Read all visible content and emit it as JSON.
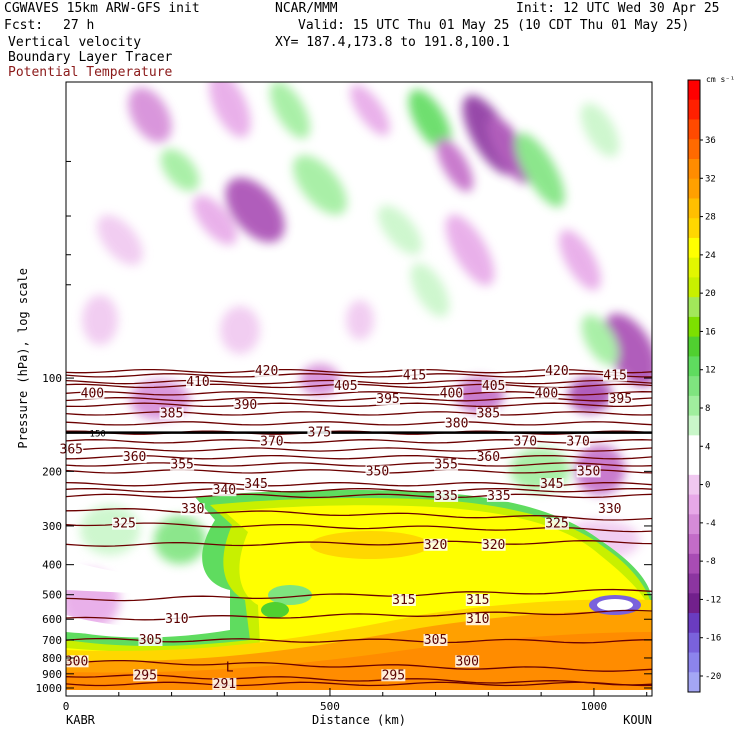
{
  "header": {
    "model": "CGWAVES 15km ARW-GFS init",
    "org": "NCAR/MMM",
    "init": "Init: 12 UTC Wed 30 Apr 25",
    "fcst_label": "Fcst:",
    "fcst_value": "27 h",
    "valid": "Valid: 15 UTC Thu 01 May 25 (10 CDT Thu 01 May 25)",
    "field1": "Vertical velocity",
    "xy": "XY= 187.4,173.8 to 191.8,100.1",
    "field2": "Boundary Layer Tracer",
    "field3": "Potential Temperature"
  },
  "colors": {
    "theta_line": "#6b0000",
    "field3_text": "#8b1a1a",
    "tracer": "#ff8c00"
  },
  "chart_data": {
    "type": "heatmap",
    "xlabel": "Distance (km)",
    "ylabel": "Pressure (hPa), log scale",
    "x_range": [
      0,
      1110
    ],
    "y_range": [
      1000,
      0
    ],
    "x_ticks": [
      0,
      500,
      1000
    ],
    "y_ticks": [
      100,
      200,
      300,
      400,
      500,
      600,
      700,
      800,
      900,
      1000
    ],
    "left_end_label": "KABR",
    "right_end_label": "KOUN",
    "colorbar": {
      "unit": "cm s⁻¹",
      "tick_labels": [
        "36",
        "32",
        "28",
        "24",
        "20",
        "16",
        "12",
        "8",
        "4",
        "0",
        "-4",
        "-8",
        "-12",
        "-16",
        "-20"
      ],
      "colors": [
        "#ff0000",
        "#ff2000",
        "#ff4a00",
        "#ff6a00",
        "#ff8c00",
        "#ffa000",
        "#ffbf00",
        "#ffd700",
        "#ffff00",
        "#e2f600",
        "#c8f000",
        "#a2e85a",
        "#7de000",
        "#50d030",
        "#5fdc5f",
        "#7fe47f",
        "#a0ee9e",
        "#c9f6c9",
        "#ffffff",
        "#ffffff",
        "#f0c8f0",
        "#e7a8e8",
        "#d58bd8",
        "#c36cc8",
        "#a84cb4",
        "#8c35a0",
        "#72208c",
        "#6a3cc0",
        "#7a62dc",
        "#8c84ec",
        "#a4a6f4"
      ]
    },
    "isentropes": [
      {
        "label": "291",
        "p": 970,
        "labels_at": [
          300
        ]
      },
      {
        "label": "295",
        "p": 910,
        "labels_at": [
          150,
          620
        ]
      },
      {
        "label": "300",
        "p": 820,
        "labels_at": [
          20,
          760
        ]
      },
      {
        "label": "305",
        "p": 700,
        "labels_at": [
          160,
          700
        ]
      },
      {
        "label": "310",
        "p": 600,
        "labels_at": [
          210,
          780
        ]
      },
      {
        "label": "315",
        "p": 520,
        "labels_at": [
          640,
          780
        ]
      },
      {
        "label": "320",
        "p": 345,
        "labels_at": [
          700,
          810
        ]
      },
      {
        "label": "325",
        "p": 295,
        "labels_at": [
          110,
          930
        ]
      },
      {
        "label": "330",
        "p": 265,
        "labels_at": [
          240,
          1030
        ]
      },
      {
        "label": "335",
        "p": 240,
        "labels_at": [
          720,
          820
        ]
      },
      {
        "label": "340",
        "p": 230,
        "labels_at": [
          300
        ]
      },
      {
        "label": "345",
        "p": 220,
        "labels_at": [
          360,
          920
        ]
      },
      {
        "label": "350",
        "p": 200,
        "labels_at": [
          590,
          990
        ]
      },
      {
        "label": "355",
        "p": 190,
        "labels_at": [
          220,
          720
        ]
      },
      {
        "label": "360",
        "p": 180,
        "labels_at": [
          130,
          800
        ]
      },
      {
        "label": "365",
        "p": 170,
        "labels_at": [
          10
        ]
      },
      {
        "label": "370",
        "p": 160,
        "labels_at": [
          390,
          870,
          970
        ]
      },
      {
        "label": "375",
        "p": 150,
        "labels_at": [
          480
        ]
      },
      {
        "label": "380",
        "p": 140,
        "labels_at": [
          740
        ]
      },
      {
        "label": "385",
        "p": 130,
        "labels_at": [
          200,
          800
        ]
      },
      {
        "label": "390",
        "p": 122,
        "labels_at": [
          340
        ]
      },
      {
        "label": "395",
        "p": 117,
        "labels_at": [
          610,
          1050
        ]
      },
      {
        "label": "400",
        "p": 112,
        "labels_at": [
          50,
          730,
          910
        ]
      },
      {
        "label": "405",
        "p": 106,
        "labels_at": [
          530,
          810
        ]
      },
      {
        "label": "410",
        "p": 103,
        "labels_at": [
          250
        ]
      },
      {
        "label": "415",
        "p": 98,
        "labels_at": [
          660,
          1040
        ]
      },
      {
        "label": "420",
        "p": 95,
        "labels_at": [
          380,
          930
        ]
      }
    ],
    "thick_lines": [
      {
        "label": "150",
        "p": 150
      }
    ],
    "low_marker": {
      "label": "L",
      "x": 310,
      "p": 860
    }
  }
}
